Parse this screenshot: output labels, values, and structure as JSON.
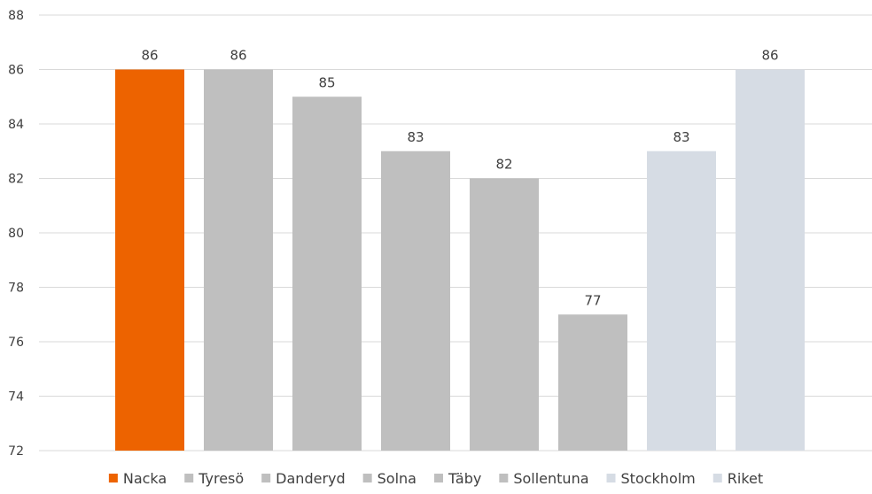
{
  "chart_data": {
    "type": "bar",
    "title": "",
    "xlabel": "",
    "ylabel": "",
    "ylim": [
      72,
      88
    ],
    "yticks": [
      72,
      74,
      76,
      78,
      80,
      82,
      84,
      86,
      88
    ],
    "grid": true,
    "legend_position": "bottom",
    "categories": [
      "Nacka",
      "Tyresö",
      "Danderyd",
      "Solna",
      "Täby",
      "Sollentuna",
      "Stockholm",
      "Riket"
    ],
    "values": [
      86,
      86,
      85,
      83,
      82,
      77,
      83,
      86
    ],
    "data_labels": [
      "86",
      "86",
      "85",
      "83",
      "82",
      "77",
      "83",
      "86"
    ],
    "colors": [
      "#ed6300",
      "#bfbfbf",
      "#bfbfbf",
      "#bfbfbf",
      "#bfbfbf",
      "#bfbfbf",
      "#d6dce4",
      "#d6dce4"
    ]
  }
}
